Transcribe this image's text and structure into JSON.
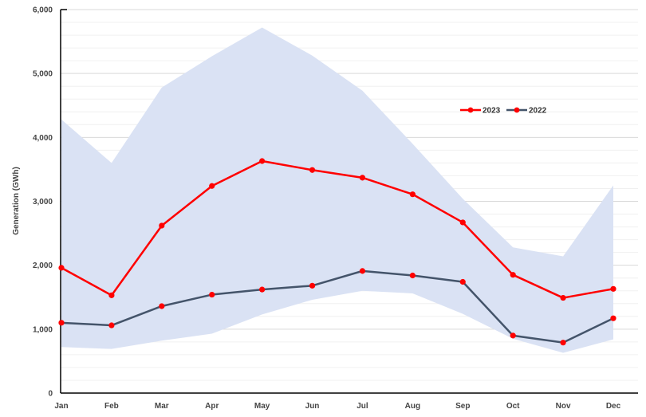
{
  "chart_data": {
    "type": "line",
    "title": "",
    "xlabel": "",
    "ylabel": "Generation (GWh)",
    "ylim": [
      0,
      6000
    ],
    "yticks": [
      "0",
      "1,000",
      "2,000",
      "3,000",
      "4,000",
      "5,000",
      "6,000"
    ],
    "ytick_values": [
      0,
      1000,
      2000,
      3000,
      4000,
      5000,
      6000
    ],
    "categories": [
      "Jan",
      "Feb",
      "Mar",
      "Apr",
      "May",
      "Jun",
      "Jul",
      "Aug",
      "Sep",
      "Oct",
      "Nov",
      "Dec"
    ],
    "range_band": {
      "color": "#dae2f4",
      "upper": [
        4280,
        3600,
        4780,
        5270,
        5720,
        5280,
        4730,
        3900,
        3040,
        2280,
        2140,
        3250
      ],
      "lower": [
        720,
        690,
        820,
        930,
        1230,
        1460,
        1600,
        1560,
        1240,
        850,
        630,
        840
      ]
    },
    "series": [
      {
        "name": "2023",
        "color": "#ff0000",
        "values": [
          1960,
          1530,
          2620,
          3240,
          3630,
          3490,
          3370,
          3110,
          2670,
          1850,
          1490,
          1630
        ]
      },
      {
        "name": "2022",
        "color": "#44546a",
        "marker_color": "#ff0000",
        "values": [
          1100,
          1060,
          1360,
          1540,
          1620,
          1680,
          1910,
          1840,
          1740,
          900,
          790,
          1170
        ]
      }
    ],
    "legend": {
      "position": "top-right",
      "entries": [
        "2023",
        "2022"
      ]
    },
    "grid": true
  }
}
